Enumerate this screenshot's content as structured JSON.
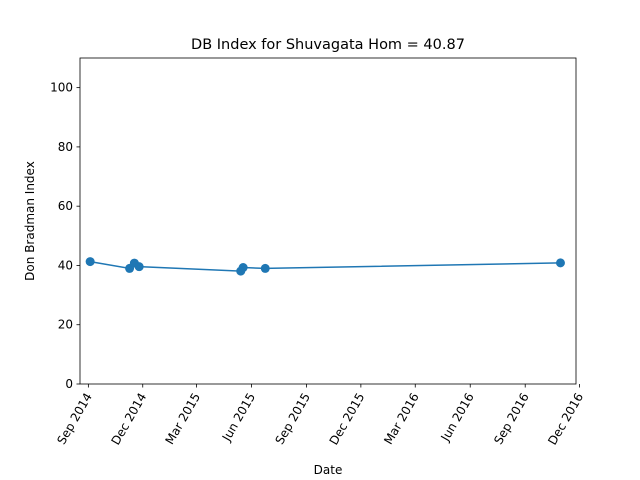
{
  "chart_data": {
    "type": "line",
    "title": "DB Index for Shuvagata Hom = 40.87",
    "xlabel": "Date",
    "ylabel": "Don Bradman Index",
    "xlim": [
      "2014-08-18",
      "2016-11-25"
    ],
    "ylim": [
      0,
      110
    ],
    "x_ticks": [
      {
        "date": "2014-09-01",
        "label": "Sep 2014"
      },
      {
        "date": "2014-12-01",
        "label": "Dec 2014"
      },
      {
        "date": "2015-03-01",
        "label": "Mar 2015"
      },
      {
        "date": "2015-06-01",
        "label": "Jun 2015"
      },
      {
        "date": "2015-09-01",
        "label": "Sep 2015"
      },
      {
        "date": "2015-12-01",
        "label": "Dec 2015"
      },
      {
        "date": "2016-03-01",
        "label": "Mar 2016"
      },
      {
        "date": "2016-06-01",
        "label": "Jun 2016"
      },
      {
        "date": "2016-09-01",
        "label": "Sep 2016"
      },
      {
        "date": "2016-12-01",
        "label": "Dec 2016"
      }
    ],
    "y_ticks": [
      0,
      20,
      40,
      60,
      80,
      100
    ],
    "grid": false,
    "color": "#1f77b4",
    "series": [
      {
        "x": [
          "2014-09-04",
          "2014-11-09",
          "2014-11-17",
          "2014-11-25",
          "2015-05-14",
          "2015-05-18",
          "2015-06-24",
          "2016-10-30"
        ],
        "y": [
          41.3,
          39.0,
          40.8,
          39.6,
          38.1,
          39.3,
          39.0,
          40.87
        ]
      }
    ]
  }
}
